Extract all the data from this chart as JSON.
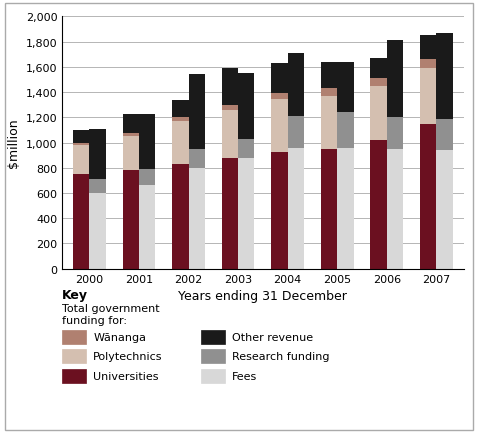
{
  "years": [
    2000,
    2001,
    2002,
    2003,
    2004,
    2005,
    2006,
    2007
  ],
  "left_bars": {
    "Universities": [
      750,
      780,
      830,
      875,
      925,
      950,
      1020,
      1145
    ],
    "Polytechnics": [
      230,
      270,
      340,
      385,
      420,
      420,
      430,
      445
    ],
    "Wananga": [
      20,
      25,
      30,
      35,
      50,
      60,
      65,
      75
    ],
    "Other_revenue": [
      100,
      155,
      140,
      295,
      235,
      210,
      155,
      185
    ]
  },
  "right_bars": {
    "Fees": [
      600,
      660,
      800,
      875,
      960,
      960,
      950,
      940
    ],
    "Research_funding": [
      110,
      130,
      150,
      150,
      250,
      280,
      250,
      250
    ],
    "Other_revenue": [
      400,
      440,
      590,
      525,
      500,
      400,
      610,
      675
    ]
  },
  "colors": {
    "Universities": "#6B1020",
    "Polytechnics": "#D4BFB0",
    "Wananga": "#B08070",
    "Other_revenue_l": "#1A1A1A",
    "Fees": "#D8D8D8",
    "Research_funding": "#909090",
    "Other_revenue_r": "#1A1A1A"
  },
  "ylim": [
    0,
    2000
  ],
  "yticks": [
    0,
    200,
    400,
    600,
    800,
    1000,
    1200,
    1400,
    1600,
    1800,
    2000
  ],
  "xlabel": "Years ending 31 December",
  "ylabel": "$million",
  "bar_width": 0.33,
  "figsize": [
    4.78,
    4.35
  ],
  "dpi": 100
}
